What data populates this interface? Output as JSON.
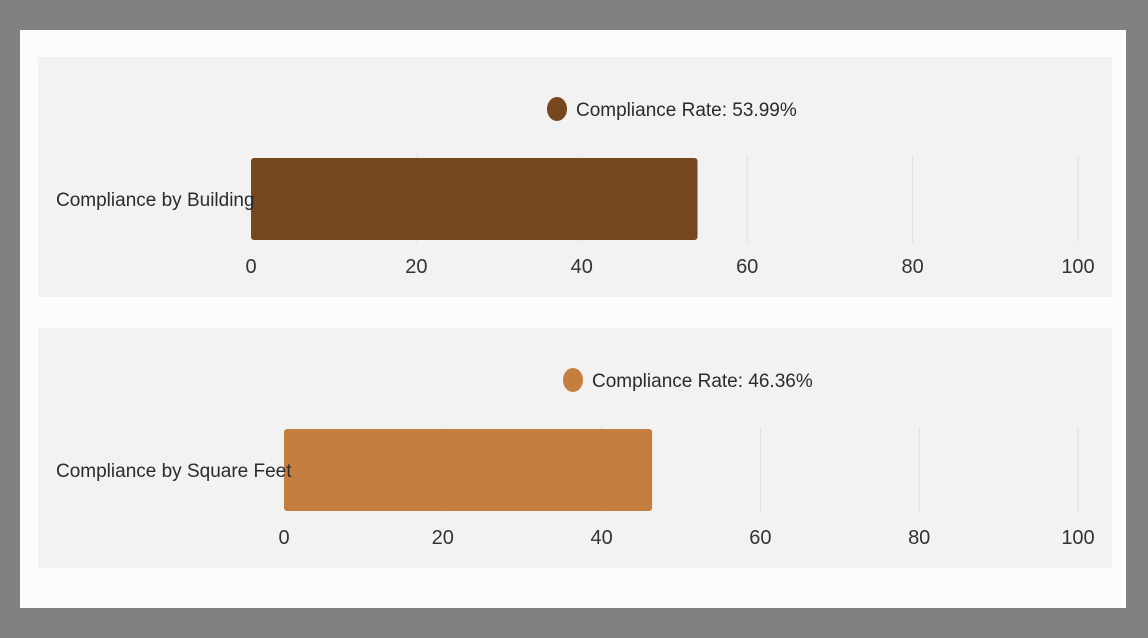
{
  "chart_data": [
    {
      "type": "bar",
      "orientation": "horizontal",
      "categories": [
        "Compliance by Building"
      ],
      "series": [
        {
          "name": "Compliance Rate: 53.99%",
          "values": [
            53.99
          ],
          "color": "#76461e"
        }
      ],
      "xlim": [
        0,
        100
      ],
      "ticks": [
        "0",
        "20",
        "40",
        "60",
        "80",
        "100"
      ],
      "grid": true,
      "legend": "top-center"
    },
    {
      "type": "bar",
      "orientation": "horizontal",
      "categories": [
        "Compliance by Square Feet"
      ],
      "series": [
        {
          "name": "Compliance Rate: 46.36%",
          "values": [
            46.36
          ],
          "color": "#c47f40"
        }
      ],
      "xlim": [
        0,
        100
      ],
      "ticks": [
        "0",
        "20",
        "40",
        "60",
        "80",
        "100"
      ],
      "grid": true,
      "legend": "top-center"
    }
  ]
}
